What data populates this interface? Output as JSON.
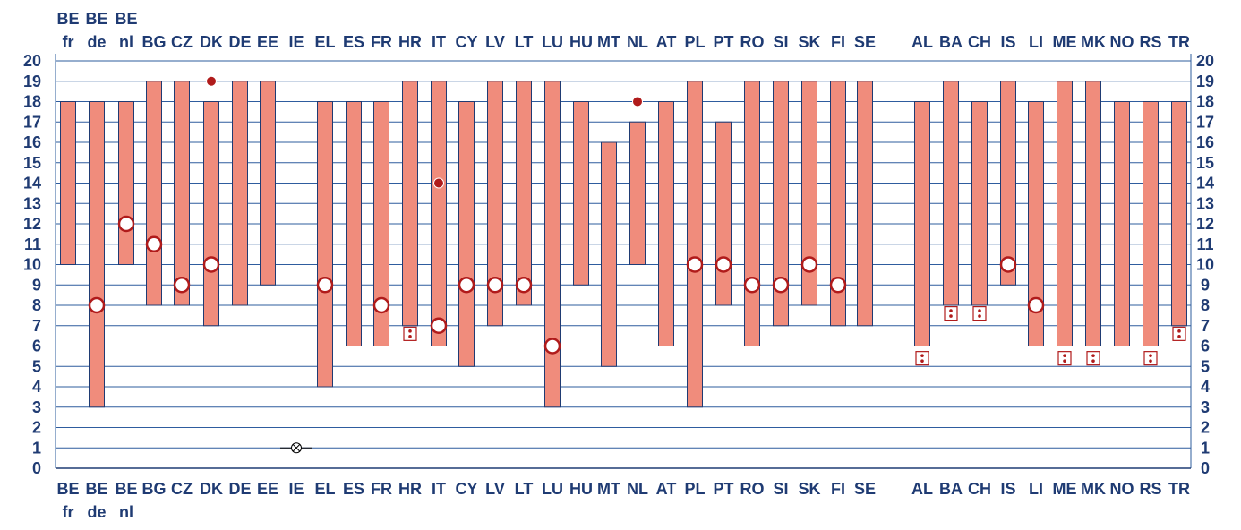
{
  "chart_data": {
    "type": "bar",
    "categories": [
      "BE fr",
      "BE de",
      "BE nl",
      "BG",
      "CZ",
      "DK",
      "DE",
      "EE",
      "IE",
      "EL",
      "ES",
      "FR",
      "HR",
      "IT",
      "CY",
      "LV",
      "LT",
      "LU",
      "HU",
      "MT",
      "NL",
      "AT",
      "PL",
      "PT",
      "RO",
      "SI",
      "SK",
      "FI",
      "SE",
      "AL",
      "BA",
      "CH",
      "IS",
      "LI",
      "ME",
      "MK",
      "NO",
      "RS",
      "TR"
    ],
    "category_labels": [
      [
        "BE",
        "fr"
      ],
      [
        "BE",
        "de"
      ],
      [
        "BE",
        "nl"
      ],
      [
        "BG"
      ],
      [
        "CZ"
      ],
      [
        "DK"
      ],
      [
        "DE"
      ],
      [
        "EE"
      ],
      [
        "IE"
      ],
      [
        "EL"
      ],
      [
        "ES"
      ],
      [
        "FR"
      ],
      [
        "HR"
      ],
      [
        "IT"
      ],
      [
        "CY"
      ],
      [
        "LV"
      ],
      [
        "LT"
      ],
      [
        "LU"
      ],
      [
        "HU"
      ],
      [
        "MT"
      ],
      [
        "NL"
      ],
      [
        "AT"
      ],
      [
        "PL"
      ],
      [
        "PT"
      ],
      [
        "RO"
      ],
      [
        "SI"
      ],
      [
        "SK"
      ],
      [
        "FI"
      ],
      [
        "SE"
      ],
      [
        "AL"
      ],
      [
        "BA"
      ],
      [
        "CH"
      ],
      [
        "IS"
      ],
      [
        "LI"
      ],
      [
        "ME"
      ],
      [
        "MK"
      ],
      [
        "NO"
      ],
      [
        "RS"
      ],
      [
        "TR"
      ]
    ],
    "ranges": [
      [
        10,
        18
      ],
      [
        3,
        18
      ],
      [
        10,
        18
      ],
      [
        8,
        19
      ],
      [
        8,
        19
      ],
      [
        7,
        18
      ],
      [
        8,
        19
      ],
      [
        9,
        19
      ],
      null,
      [
        4,
        18
      ],
      [
        6,
        18
      ],
      [
        6,
        18
      ],
      [
        7,
        19
      ],
      [
        6,
        19
      ],
      [
        5,
        18
      ],
      [
        7,
        19
      ],
      [
        8,
        19
      ],
      [
        3,
        19
      ],
      [
        9,
        18
      ],
      [
        5,
        16
      ],
      [
        10,
        17
      ],
      [
        6,
        18
      ],
      [
        3,
        19
      ],
      [
        8,
        17
      ],
      [
        6,
        19
      ],
      [
        7,
        19
      ],
      [
        8,
        19
      ],
      [
        7,
        19
      ],
      [
        7,
        19
      ],
      [
        6,
        18
      ],
      [
        8,
        19
      ],
      [
        8,
        18
      ],
      [
        9,
        19
      ],
      [
        6,
        18
      ],
      [
        6,
        19
      ],
      [
        6,
        19
      ],
      [
        6,
        18
      ],
      [
        6,
        18
      ],
      [
        7,
        18
      ]
    ],
    "open_markers": [
      [
        1,
        8
      ],
      [
        2,
        12
      ],
      [
        3,
        11
      ],
      [
        4,
        9
      ],
      [
        5,
        10
      ],
      [
        9,
        9
      ],
      [
        11,
        8
      ],
      [
        13,
        7
      ],
      [
        14,
        9
      ],
      [
        15,
        9
      ],
      [
        16,
        9
      ],
      [
        17,
        6
      ],
      [
        22,
        10
      ],
      [
        23,
        10
      ],
      [
        24,
        9
      ],
      [
        25,
        9
      ],
      [
        26,
        10
      ],
      [
        27,
        9
      ],
      [
        32,
        10
      ],
      [
        33,
        8
      ]
    ],
    "filled_markers": [
      [
        5,
        19
      ],
      [
        13,
        14
      ],
      [
        20,
        18
      ]
    ],
    "boxed_markers": [
      [
        12,
        6.6
      ],
      [
        29,
        5.4
      ],
      [
        30,
        7.6
      ],
      [
        31,
        7.6
      ],
      [
        34,
        5.4
      ],
      [
        35,
        5.4
      ],
      [
        37,
        5.4
      ],
      [
        38,
        6.6
      ]
    ],
    "crossed_markers": [
      [
        8,
        1
      ]
    ],
    "ylim": [
      0,
      20
    ],
    "yticks": [
      0,
      1,
      2,
      3,
      4,
      5,
      6,
      7,
      8,
      9,
      10,
      11,
      12,
      13,
      14,
      15,
      16,
      17,
      18,
      19,
      20
    ],
    "grid": true,
    "colors": {
      "bar": "#f08c7c",
      "bar_edge": "#1f3b73",
      "grid": "#2e5c9e",
      "marker": "#b01b1b",
      "text": "#1f3b73"
    }
  }
}
